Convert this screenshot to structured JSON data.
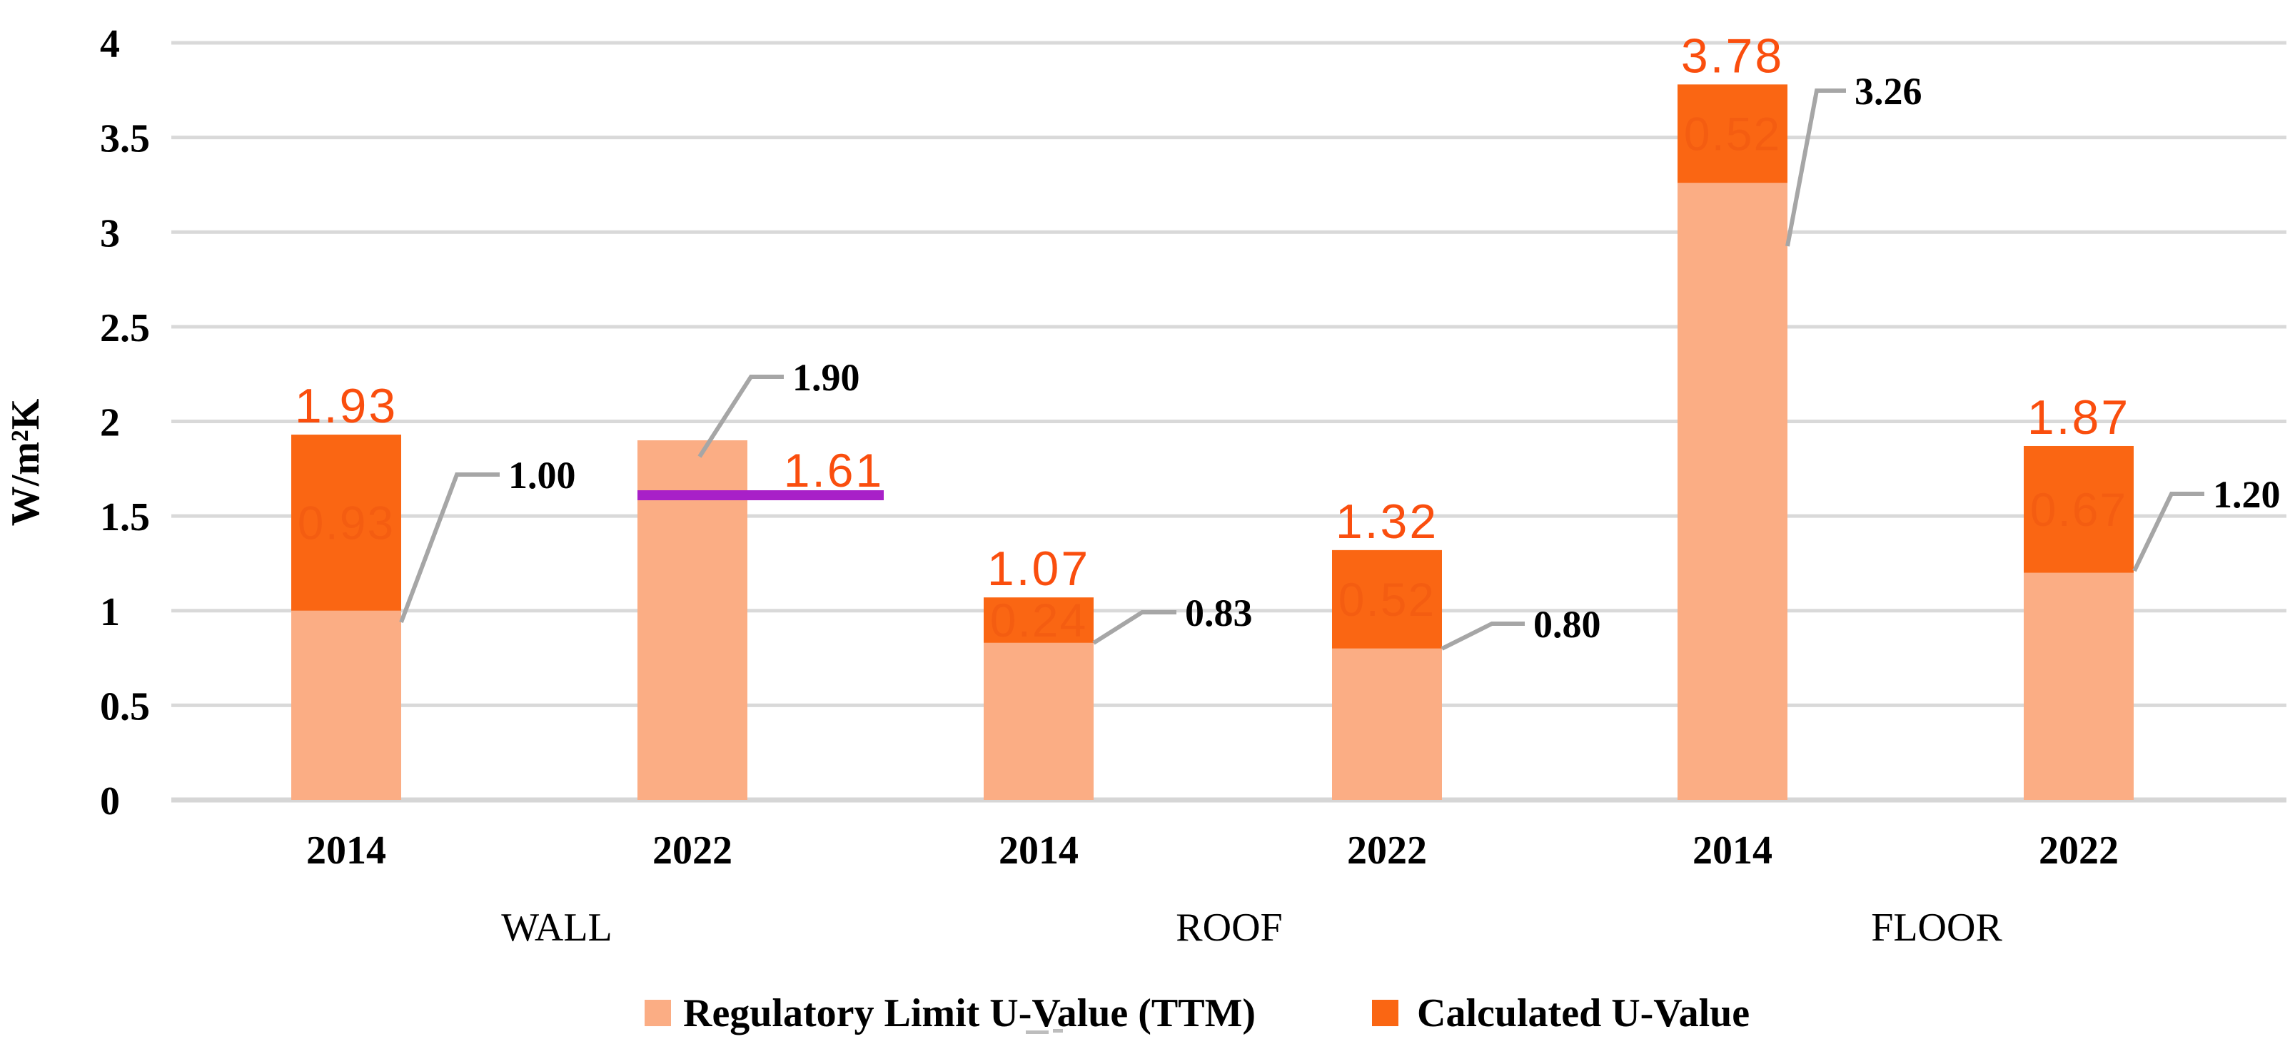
{
  "chart_data": {
    "type": "bar",
    "stacked": true,
    "title": "",
    "xlabel": "",
    "ylabel": "W/m²K",
    "ylim": [
      0,
      4
    ],
    "yticks": [
      4,
      3.5,
      3,
      2.5,
      2,
      1.5,
      1,
      0.5,
      0
    ],
    "ytick_labels": [
      "4",
      "3.5",
      "3",
      "2.5",
      "2",
      "1.5",
      "1",
      "0.5",
      "0"
    ],
    "grid": true,
    "legend_position": "bottom",
    "groups": [
      {
        "label": "WALL",
        "categories": [
          "2014",
          "2022"
        ]
      },
      {
        "label": "ROOF",
        "categories": [
          "2014",
          "2022"
        ]
      },
      {
        "label": "FLOOR",
        "categories": [
          "2014",
          "2022"
        ]
      }
    ],
    "categories": [
      "2014",
      "2022",
      "2014",
      "2022",
      "2014",
      "2022"
    ],
    "series": [
      {
        "name": "Regulatory Limit U-Value (TTM)",
        "color": "#fbad84",
        "values": [
          1.0,
          1.9,
          0.83,
          0.8,
          3.26,
          1.2
        ]
      },
      {
        "name": "Calculated U-Value",
        "color": "#fa6613",
        "values": [
          0.93,
          0,
          0.24,
          0.52,
          0.52,
          0.67
        ]
      }
    ],
    "bar_totals": [
      1.93,
      1.9,
      1.07,
      1.32,
      3.78,
      1.87
    ],
    "total_labels": [
      {
        "bar": 0,
        "text": "1.93"
      },
      {
        "bar": 2,
        "text": "1.07"
      },
      {
        "bar": 3,
        "text": "1.32"
      },
      {
        "bar": 4,
        "text": "3.78"
      },
      {
        "bar": 5,
        "text": "1.87"
      }
    ],
    "inner_segment_labels": [
      {
        "bar": 0,
        "text": "0.93"
      },
      {
        "bar": 2,
        "text": "0.24"
      },
      {
        "bar": 3,
        "text": "0.52"
      },
      {
        "bar": 4,
        "text": "0.52"
      },
      {
        "bar": 5,
        "text": "0.67"
      }
    ],
    "callouts": [
      {
        "bar": 0,
        "text": "1.00",
        "value": 1.0
      },
      {
        "bar": 1,
        "text": "1.90",
        "value": 1.9
      },
      {
        "bar": 2,
        "text": "0.83",
        "value": 0.83
      },
      {
        "bar": 3,
        "text": "0.80",
        "value": 0.8
      },
      {
        "bar": 4,
        "text": "3.26",
        "value": 3.26
      },
      {
        "bar": 5,
        "text": "1.20",
        "value": 1.2
      }
    ],
    "reference_line": {
      "bar": 1,
      "text": "1.61",
      "value": 1.61,
      "color": "#a820c8"
    },
    "legend": [
      {
        "label": "Regulatory Limit U-Value (TTM)",
        "color": "#fbad84"
      },
      {
        "label": "Calculated U-Value",
        "color": "#fa6613"
      }
    ],
    "colors": {
      "gridline": "#d9d9d9",
      "axis_line": "#d6d6d6",
      "leader_line": "#a6a6a6",
      "value_label_orange": "#fa4e0e",
      "callout_text": "#000000"
    }
  }
}
